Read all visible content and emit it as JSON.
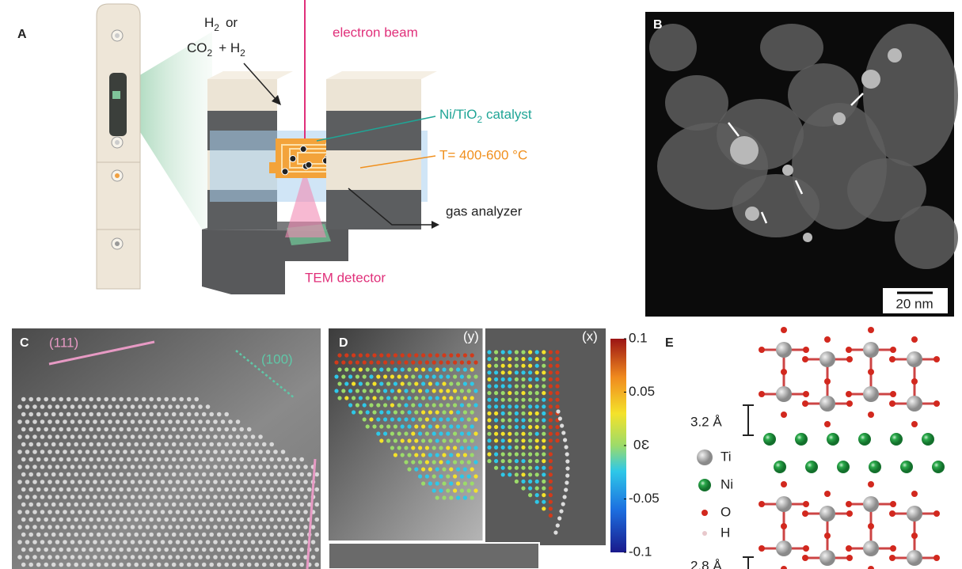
{
  "panel_a": {
    "label": "A",
    "gas_h": "H",
    "gas_h_sub": "2",
    "gas_or": "or",
    "gas_co": "CO",
    "gas_co_sub": "2",
    "gas_plus_h": "+ H",
    "gas_plus_h_sub": "2",
    "electron_beam": "electron beam",
    "catalyst": "Ni/TiO",
    "catalyst_sub": "2",
    "catalyst_suffix": " catalyst",
    "temperature": "T= 400-600 °C",
    "gas_analyzer": "gas analyzer",
    "detector": "TEM detector"
  },
  "panel_b": {
    "label": "B",
    "scale_bar": "20 nm"
  },
  "panel_c": {
    "label": "C",
    "facet_111": "(111)",
    "facet_100": "(100)"
  },
  "panel_d": {
    "label": "D",
    "map_y": "(y)",
    "map_x": "(x)",
    "colorbar": {
      "ticks": [
        0.1,
        0.05,
        0,
        -0.05,
        -0.1
      ],
      "symbol": "Ɛ"
    }
  },
  "panel_e": {
    "label": "E",
    "spacing_top": "3.2 Å",
    "spacing_bottom": "2.8 Å",
    "legend": [
      "Ti",
      "Ni",
      "O",
      "H"
    ]
  }
}
